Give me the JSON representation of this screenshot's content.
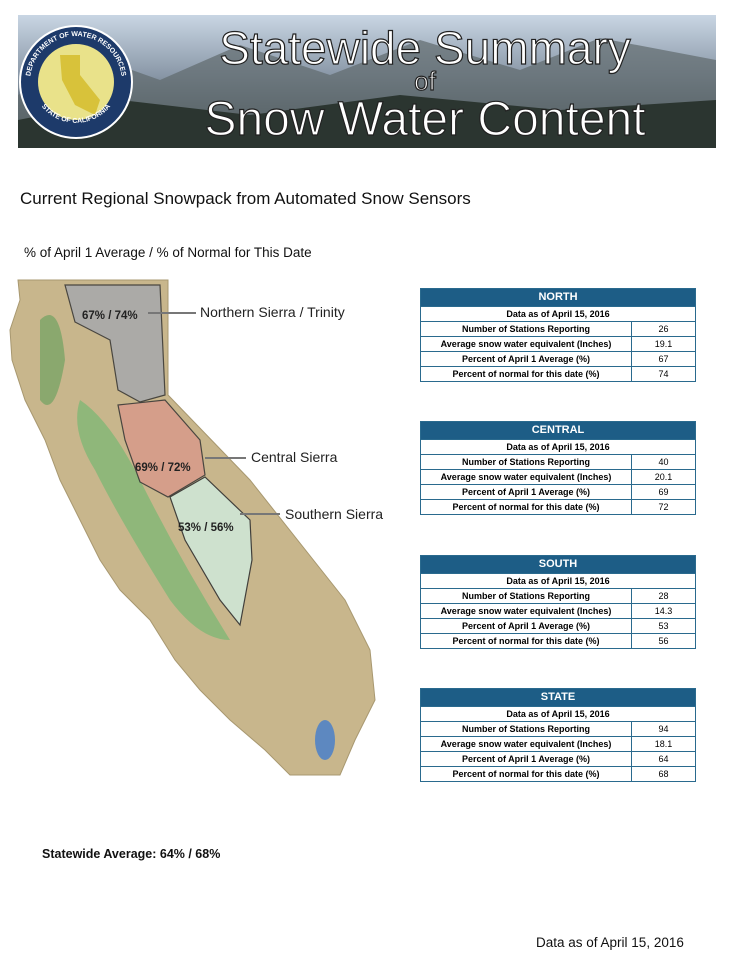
{
  "header": {
    "title_line1": "Statewide Summary",
    "title_line2": "of",
    "title_line3": "Snow Water Content",
    "seal_top": "DEPARTMENT OF WATER RESOURCES",
    "seal_bottom": "STATE OF CALIFORNIA"
  },
  "heading": "Current Regional Snowpack from Automated Snow Sensors",
  "map": {
    "legend": "% of April 1 Average / % of Normal for This Date",
    "regions": [
      {
        "name": "Northern Sierra / Trinity",
        "label": "67% / 74%"
      },
      {
        "name": "Central Sierra",
        "label": "69% / 72%"
      },
      {
        "name": "Southern Sierra",
        "label": "53% / 56%"
      }
    ]
  },
  "tables": [
    {
      "title": "NORTH",
      "date": "Data as of April 15, 2016",
      "rows": [
        [
          "Number of Stations Reporting",
          26
        ],
        [
          "Average snow water equivalent (Inches)",
          19.1
        ],
        [
          "Percent of April 1 Average (%)",
          67
        ],
        [
          "Percent of normal for this date (%)",
          74
        ]
      ]
    },
    {
      "title": "CENTRAL",
      "date": "Data as of April 15, 2016",
      "rows": [
        [
          "Number of Stations Reporting",
          40
        ],
        [
          "Average snow water equivalent (Inches)",
          20.1
        ],
        [
          "Percent of April 1 Average (%)",
          69
        ],
        [
          "Percent of normal for this date (%)",
          72
        ]
      ]
    },
    {
      "title": "SOUTH",
      "date": "Data as of April 15, 2016",
      "rows": [
        [
          "Number of Stations Reporting",
          28
        ],
        [
          "Average snow water equivalent (Inches)",
          14.3
        ],
        [
          "Percent of April 1 Average (%)",
          53
        ],
        [
          "Percent of normal for this date (%)",
          56
        ]
      ]
    },
    {
      "title": "STATE",
      "date": "Data as of April 15, 2016",
      "rows": [
        [
          "Number of Stations Reporting",
          94
        ],
        [
          "Average snow water equivalent (Inches)",
          18.1
        ],
        [
          "Percent of April 1 Average (%)",
          64
        ],
        [
          "Percent of normal for this date (%)",
          68
        ]
      ]
    }
  ],
  "statewide": "Statewide Average: 64% / 68%",
  "footer": "Data as of April 15, 2016"
}
